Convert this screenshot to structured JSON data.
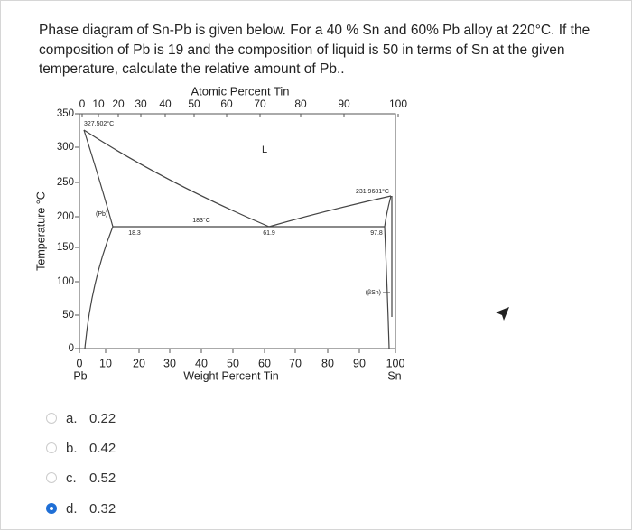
{
  "question": "Phase diagram of Sn-Pb is given below. For a 40 % Sn and 60% Pb alloy at 220°C.  If the composition of Pb is 19 and the composition of liquid is 50 in terms of Sn at the given temperature, calculate the relative amount of Pb..",
  "diagram": {
    "top_axis_title": "Atomic Percent Tin",
    "top_ticks": [
      "0",
      "10",
      "20",
      "30",
      "40",
      "50",
      "60",
      "70",
      "80",
      "90",
      "100"
    ],
    "y_axis_title": "Temperature °C",
    "y_ticks": [
      "350",
      "300",
      "250",
      "200",
      "150",
      "100",
      "50",
      "0"
    ],
    "bottom_ticks": [
      "0",
      "10",
      "20",
      "30",
      "40",
      "50",
      "60",
      "70",
      "80",
      "90",
      "100"
    ],
    "bottom_axis_title": "Weight Percent Tin",
    "left_end_label": "Pb",
    "right_end_label": "Sn",
    "annotations": [
      "327.502°C",
      "L",
      "231.9681°C",
      "(Pb)",
      "18.3",
      "183°C",
      "61.9",
      "97.8",
      "(βSn)"
    ]
  },
  "options": [
    {
      "letter": "a.",
      "text": "0.22",
      "selected": false
    },
    {
      "letter": "b.",
      "text": "0.42",
      "selected": false
    },
    {
      "letter": "c.",
      "text": "0.52",
      "selected": false
    },
    {
      "letter": "d.",
      "text": "0.32",
      "selected": true
    }
  ]
}
